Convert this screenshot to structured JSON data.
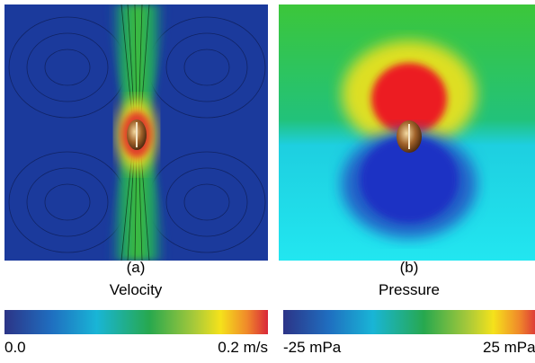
{
  "panels": [
    {
      "label": "(a)",
      "colorbar": {
        "title": "Velocity",
        "min_label": "0.0",
        "max_label": "0.2 m/s"
      }
    },
    {
      "label": "(b)",
      "colorbar": {
        "title": "Pressure",
        "min_label": "-25 mPa",
        "max_label": "25 mPa"
      }
    }
  ]
}
